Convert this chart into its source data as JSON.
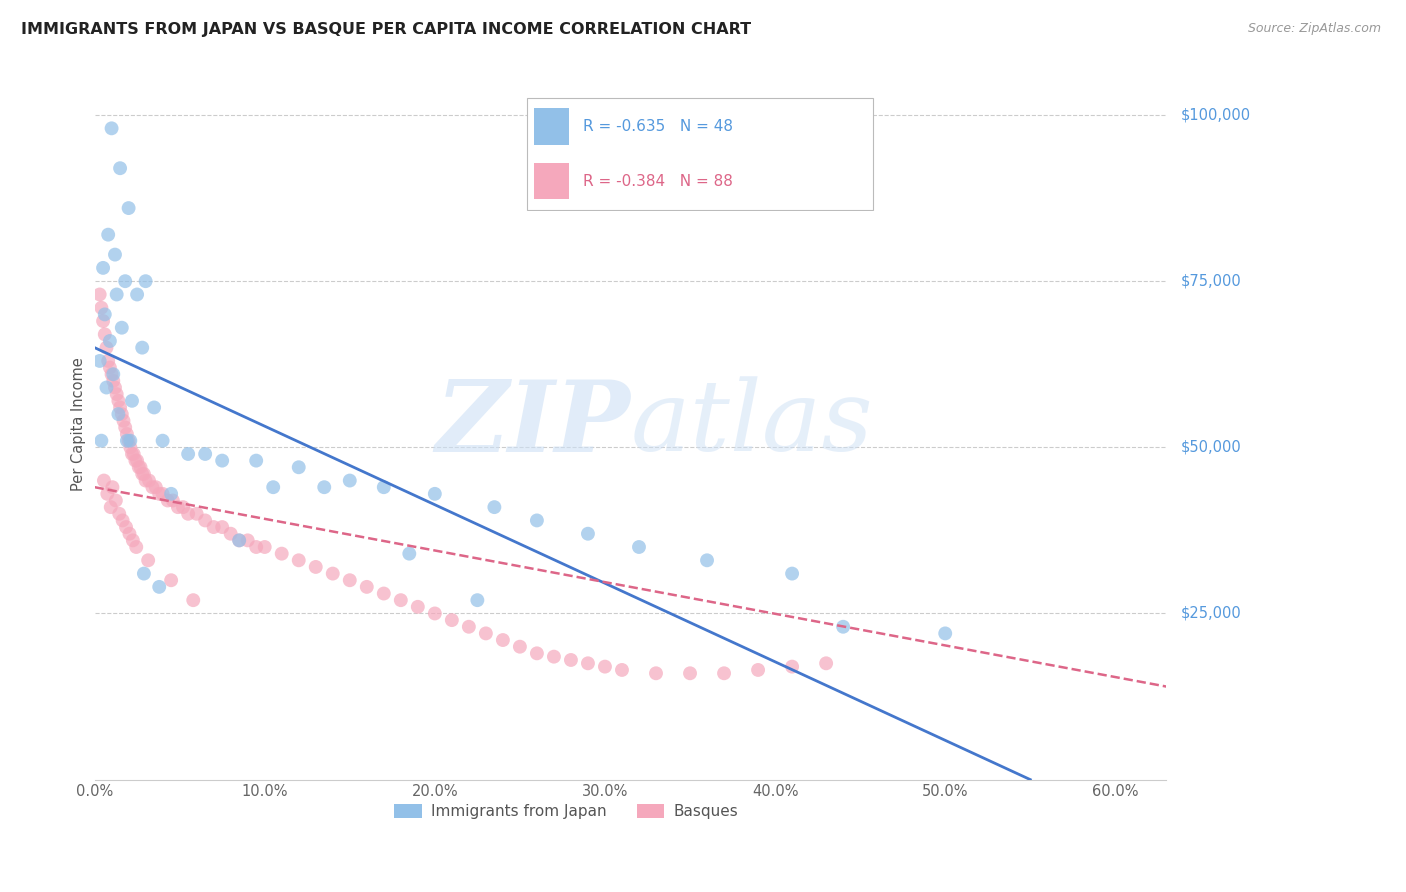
{
  "title": "IMMIGRANTS FROM JAPAN VS BASQUE PER CAPITA INCOME CORRELATION CHART",
  "source": "Source: ZipAtlas.com",
  "ylabel": "Per Capita Income",
  "xlabel_ticks": [
    "0.0%",
    "10.0%",
    "20.0%",
    "30.0%",
    "40.0%",
    "50.0%",
    "60.0%"
  ],
  "xlabel_vals": [
    0.0,
    10.0,
    20.0,
    30.0,
    40.0,
    50.0,
    60.0
  ],
  "ytick_labels": [
    "$100,000",
    "$75,000",
    "$50,000",
    "$25,000"
  ],
  "ytick_vals": [
    100000,
    75000,
    50000,
    25000
  ],
  "xlim": [
    0,
    63
  ],
  "ylim": [
    0,
    107000
  ],
  "blue_R": -0.635,
  "blue_N": 48,
  "pink_R": -0.384,
  "pink_N": 88,
  "blue_color": "#92c0e8",
  "pink_color": "#f5a8bc",
  "blue_line_color": "#4477cc",
  "pink_line_color": "#dd6688",
  "grid_color": "#cccccc",
  "legend_label_blue": "Immigrants from Japan",
  "legend_label_pink": "Basques",
  "blue_scatter_x": [
    1.0,
    1.5,
    2.0,
    0.8,
    1.2,
    0.5,
    1.8,
    1.3,
    2.5,
    0.6,
    1.6,
    3.0,
    0.9,
    2.8,
    1.1,
    0.7,
    2.2,
    3.5,
    1.4,
    0.4,
    1.9,
    2.1,
    4.0,
    5.5,
    7.5,
    9.5,
    12.0,
    15.0,
    17.0,
    20.0,
    23.5,
    26.0,
    29.0,
    32.0,
    36.0,
    41.0,
    13.5,
    6.5,
    4.5,
    8.5,
    18.5,
    44.0,
    50.0,
    22.5,
    0.3,
    2.9,
    10.5,
    3.8
  ],
  "blue_scatter_y": [
    98000,
    92000,
    86000,
    82000,
    79000,
    77000,
    75000,
    73000,
    73000,
    70000,
    68000,
    75000,
    66000,
    65000,
    61000,
    59000,
    57000,
    56000,
    55000,
    51000,
    51000,
    51000,
    51000,
    49000,
    48000,
    48000,
    47000,
    45000,
    44000,
    43000,
    41000,
    39000,
    37000,
    35000,
    33000,
    31000,
    44000,
    49000,
    43000,
    36000,
    34000,
    23000,
    22000,
    27000,
    63000,
    31000,
    44000,
    29000
  ],
  "pink_scatter_x": [
    0.3,
    0.4,
    0.5,
    0.6,
    0.7,
    0.8,
    0.9,
    1.0,
    1.1,
    1.2,
    1.3,
    1.4,
    1.5,
    1.6,
    1.7,
    1.8,
    1.9,
    2.0,
    2.1,
    2.2,
    2.3,
    2.4,
    2.5,
    2.6,
    2.7,
    2.8,
    2.9,
    3.0,
    3.2,
    3.4,
    3.6,
    3.8,
    4.0,
    4.3,
    4.6,
    4.9,
    5.2,
    5.5,
    6.0,
    6.5,
    7.0,
    7.5,
    8.0,
    8.5,
    9.0,
    9.5,
    10.0,
    11.0,
    12.0,
    13.0,
    14.0,
    15.0,
    16.0,
    17.0,
    18.0,
    19.0,
    20.0,
    21.0,
    22.0,
    23.0,
    24.0,
    25.0,
    26.0,
    27.0,
    28.0,
    29.0,
    30.0,
    31.0,
    33.0,
    35.0,
    37.0,
    39.0,
    41.0,
    43.0,
    1.05,
    1.25,
    1.45,
    1.65,
    1.85,
    2.05,
    2.25,
    2.45,
    0.55,
    0.75,
    0.95,
    3.15,
    4.5,
    5.8
  ],
  "pink_scatter_y": [
    73000,
    71000,
    69000,
    67000,
    65000,
    63000,
    62000,
    61000,
    60000,
    59000,
    58000,
    57000,
    56000,
    55000,
    54000,
    53000,
    52000,
    51000,
    50000,
    49000,
    49000,
    48000,
    48000,
    47000,
    47000,
    46000,
    46000,
    45000,
    45000,
    44000,
    44000,
    43000,
    43000,
    42000,
    42000,
    41000,
    41000,
    40000,
    40000,
    39000,
    38000,
    38000,
    37000,
    36000,
    36000,
    35000,
    35000,
    34000,
    33000,
    32000,
    31000,
    30000,
    29000,
    28000,
    27000,
    26000,
    25000,
    24000,
    23000,
    22000,
    21000,
    20000,
    19000,
    18500,
    18000,
    17500,
    17000,
    16500,
    16000,
    16000,
    16000,
    16500,
    17000,
    17500,
    44000,
    42000,
    40000,
    39000,
    38000,
    37000,
    36000,
    35000,
    45000,
    43000,
    41000,
    33000,
    30000,
    27000
  ]
}
